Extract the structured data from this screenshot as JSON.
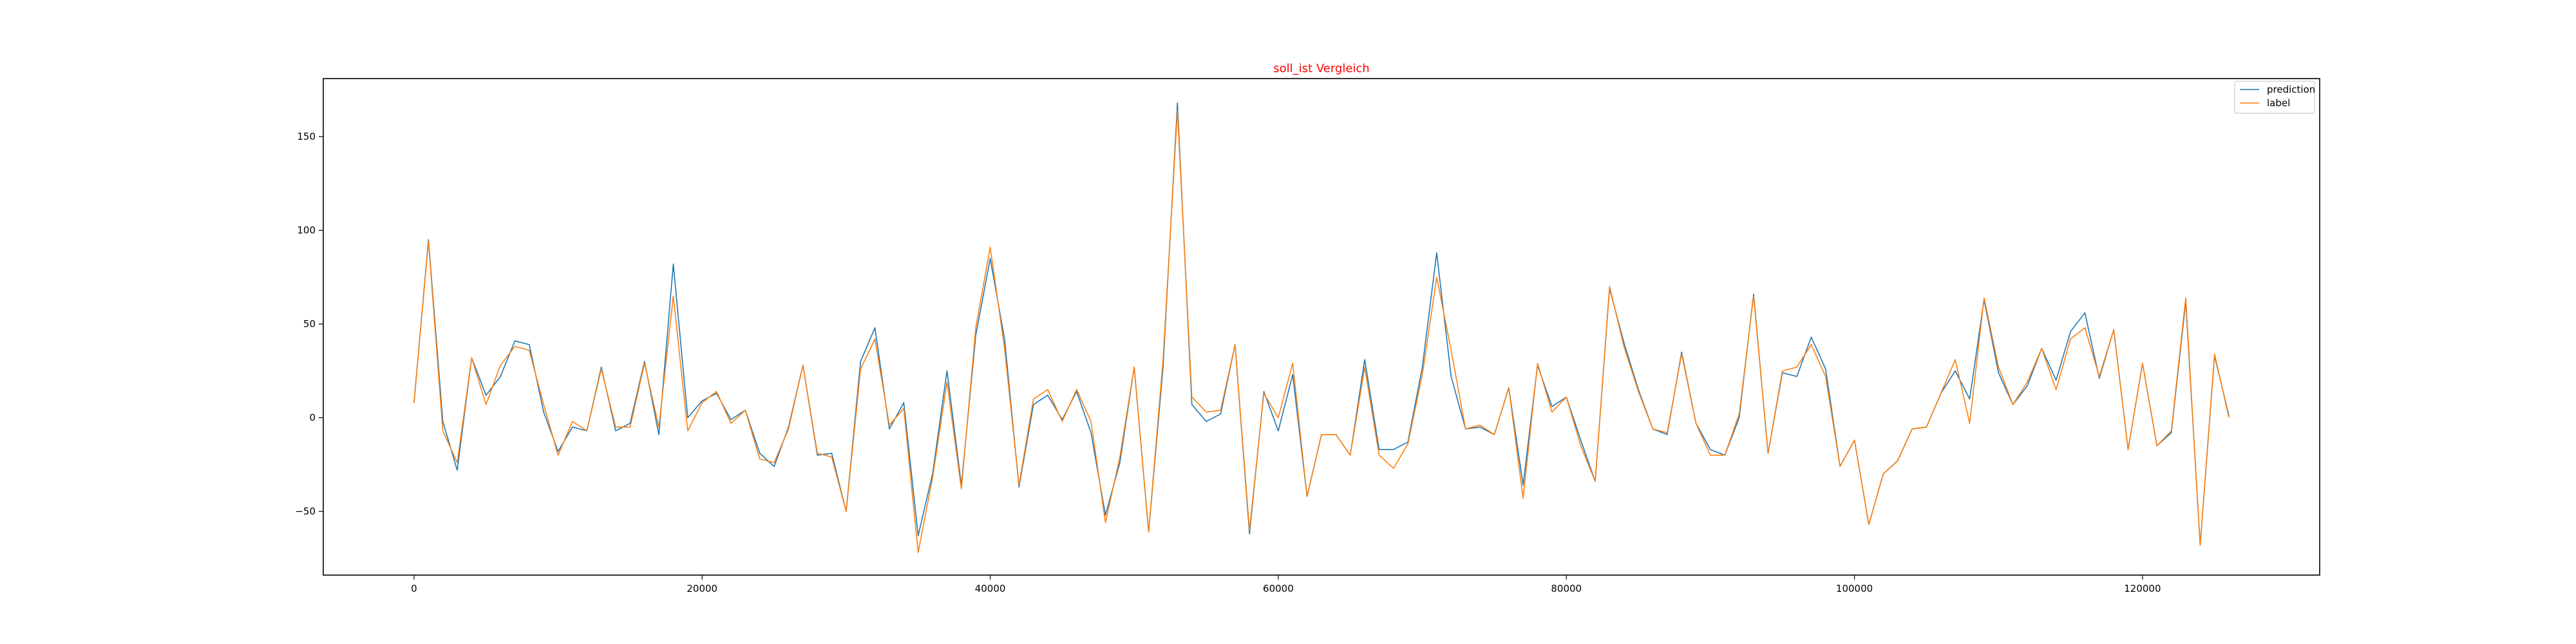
{
  "chart_data": {
    "type": "line",
    "title": "soll_ist Vergleich",
    "title_color": "#ff0000",
    "xlabel": "",
    "ylabel": "",
    "xlim": [
      -6300,
      132300
    ],
    "ylim": [
      -84,
      181
    ],
    "xticks": [
      0,
      20000,
      40000,
      60000,
      80000,
      100000,
      120000
    ],
    "xtick_labels": [
      "0",
      "20000",
      "40000",
      "60000",
      "80000",
      "100000",
      "120000"
    ],
    "yticks": [
      -50,
      0,
      50,
      100,
      150
    ],
    "ytick_labels": [
      "−50",
      "0",
      "50",
      "100",
      "150"
    ],
    "grid": false,
    "legend_position": "top-right",
    "x": [
      0,
      1000,
      2000,
      3000,
      4000,
      5000,
      6000,
      7000,
      8000,
      9000,
      10000,
      11000,
      12000,
      13000,
      14000,
      15000,
      16000,
      17000,
      18000,
      19000,
      20000,
      21000,
      22000,
      23000,
      24000,
      25000,
      26000,
      27000,
      28000,
      29000,
      30000,
      31000,
      32000,
      33000,
      34000,
      35000,
      36000,
      37000,
      38000,
      39000,
      40000,
      41000,
      42000,
      43000,
      44000,
      45000,
      46000,
      47000,
      48000,
      49000,
      50000,
      51000,
      52000,
      53000,
      54000,
      55000,
      56000,
      57000,
      58000,
      59000,
      60000,
      61000,
      62000,
      63000,
      64000,
      65000,
      66000,
      67000,
      68000,
      69000,
      70000,
      71000,
      72000,
      73000,
      74000,
      75000,
      76000,
      77000,
      78000,
      79000,
      80000,
      81000,
      82000,
      83000,
      84000,
      85000,
      86000,
      87000,
      88000,
      89000,
      90000,
      91000,
      92000,
      93000,
      94000,
      95000,
      96000,
      97000,
      98000,
      99000,
      100000,
      101000,
      102000,
      103000,
      104000,
      105000,
      106000,
      107000,
      108000,
      109000,
      110000,
      111000,
      112000,
      113000,
      114000,
      115000,
      116000,
      117000,
      118000,
      119000,
      120000,
      121000,
      122000,
      123000,
      124000,
      125000,
      126000
    ],
    "series": [
      {
        "name": "prediction",
        "color": "#1f77b4",
        "values": [
          8,
          95,
          -2,
          -28,
          32,
          12,
          22,
          41,
          39,
          3,
          -18,
          -5,
          -7,
          27,
          -7,
          -3,
          30,
          -9,
          82,
          0,
          9,
          13,
          -1,
          4,
          -19,
          -26,
          -5,
          28,
          -20,
          -19,
          -50,
          30,
          48,
          -6,
          8,
          -63,
          -30,
          25,
          -36,
          44,
          85,
          42,
          -37,
          7,
          12,
          -1,
          14,
          -8,
          -52,
          -24,
          27,
          -61,
          27,
          168,
          7,
          -2,
          2,
          39,
          -62,
          14,
          -7,
          23,
          -42,
          -9,
          -9,
          -20,
          31,
          -17,
          -17,
          -13,
          27,
          88,
          22,
          -6,
          -5,
          -9,
          16,
          -36,
          28,
          6,
          11,
          -12,
          -34,
          69,
          40,
          15,
          -6,
          -9,
          35,
          -3,
          -17,
          -20,
          0,
          66,
          -19,
          24,
          22,
          43,
          26,
          -26,
          -12,
          -57,
          -30,
          -23,
          -6,
          -5,
          13,
          25,
          10,
          63,
          24,
          7,
          17,
          37,
          20,
          46,
          56,
          21,
          47,
          -17,
          29,
          -15,
          -8,
          62,
          -68,
          33,
          1
        ]
      },
      {
        "name": "label",
        "color": "#ff7f0e",
        "values": [
          8,
          94,
          -7,
          -24,
          32,
          7,
          28,
          38,
          36,
          7,
          -20,
          -2,
          -7,
          26,
          -5,
          -5,
          29,
          -5,
          65,
          -7,
          8,
          14,
          -3,
          4,
          -22,
          -24,
          -6,
          28,
          -19,
          -21,
          -50,
          26,
          42,
          -4,
          5,
          -72,
          -32,
          19,
          -38,
          48,
          91,
          37,
          -36,
          10,
          15,
          -2,
          15,
          -2,
          -56,
          -21,
          27,
          -61,
          31,
          164,
          11,
          3,
          4,
          39,
          -60,
          13,
          0,
          29,
          -42,
          -9,
          -9,
          -20,
          27,
          -20,
          -27,
          -14,
          23,
          75,
          36,
          -6,
          -4,
          -9,
          16,
          -43,
          29,
          3,
          11,
          -15,
          -34,
          70,
          38,
          14,
          -6,
          -8,
          34,
          -3,
          -20,
          -20,
          2,
          65,
          -19,
          25,
          27,
          39,
          22,
          -26,
          -12,
          -57,
          -30,
          -23,
          -6,
          -5,
          13,
          31,
          -3,
          64,
          27,
          7,
          19,
          37,
          15,
          42,
          48,
          22,
          47,
          -17,
          29,
          -15,
          -7,
          64,
          -68,
          34,
          0
        ]
      }
    ]
  }
}
